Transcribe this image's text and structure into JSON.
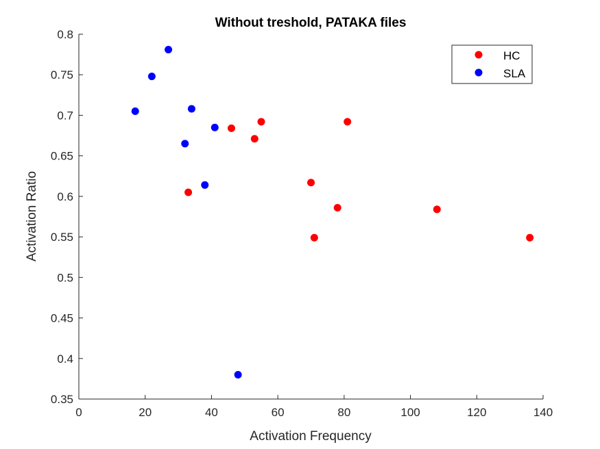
{
  "chart_data": {
    "type": "scatter",
    "title": "Without treshold, PATAKA files",
    "xlabel": "Activation Frequency",
    "ylabel": "Activation Ratio",
    "xlim": [
      0,
      140
    ],
    "ylim": [
      0.35,
      0.8
    ],
    "xticks": [
      0,
      20,
      40,
      60,
      80,
      100,
      120,
      140
    ],
    "yticks": [
      0.35,
      0.4,
      0.45,
      0.5,
      0.55,
      0.6,
      0.65,
      0.7,
      0.75,
      0.8
    ],
    "xtick_labels": [
      "0",
      "20",
      "40",
      "60",
      "80",
      "100",
      "120",
      "140"
    ],
    "ytick_labels": [
      "0.35",
      "0.4",
      "0.45",
      "0.5",
      "0.55",
      "0.6",
      "0.65",
      "0.7",
      "0.75",
      "0.8"
    ],
    "grid": false,
    "legend_position": "top-right",
    "series": [
      {
        "name": "HC",
        "color": "#ff0000",
        "points": [
          [
            33,
            0.605
          ],
          [
            46,
            0.684
          ],
          [
            53,
            0.671
          ],
          [
            55,
            0.692
          ],
          [
            70,
            0.617
          ],
          [
            71,
            0.549
          ],
          [
            78,
            0.586
          ],
          [
            81,
            0.692
          ],
          [
            108,
            0.584
          ],
          [
            136,
            0.549
          ]
        ]
      },
      {
        "name": "SLA",
        "color": "#0000ff",
        "points": [
          [
            17,
            0.705
          ],
          [
            22,
            0.748
          ],
          [
            27,
            0.781
          ],
          [
            32,
            0.665
          ],
          [
            34,
            0.708
          ],
          [
            38,
            0.614
          ],
          [
            41,
            0.685
          ],
          [
            48,
            0.38
          ]
        ]
      }
    ]
  }
}
